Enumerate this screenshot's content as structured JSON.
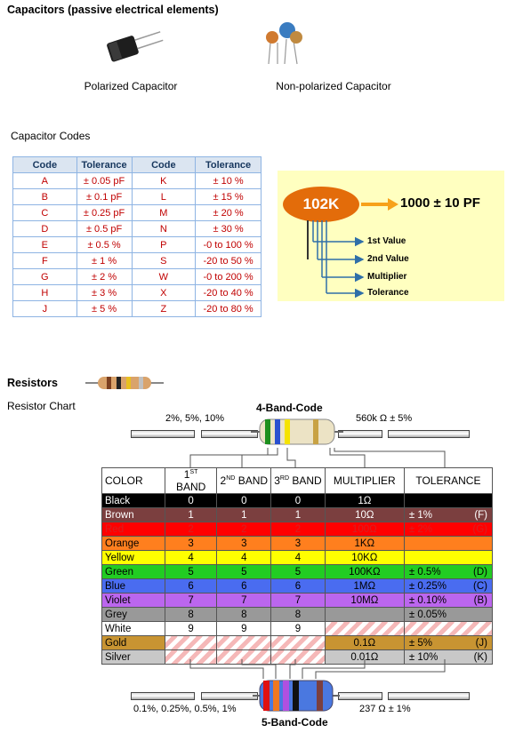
{
  "capacitors": {
    "title": "Capacitors (passive electrical elements)",
    "polarized_label": "Polarized Capacitor",
    "nonpolarized_label": "Non-polarized Capacitor",
    "codes_title": "Capacitor Codes"
  },
  "cap_table": {
    "headers": [
      "Code",
      "Tolerance",
      "Code",
      "Tolerance"
    ],
    "rows": [
      [
        "A",
        "± 0.05 pF",
        "K",
        "± 10 %"
      ],
      [
        "B",
        "± 0.1 pF",
        "L",
        "± 15 %"
      ],
      [
        "C",
        "± 0.25 pF",
        "M",
        "± 20 %"
      ],
      [
        "D",
        "± 0.5 pF",
        "N",
        "± 30 %"
      ],
      [
        "E",
        "± 0.5 %",
        "P",
        "-0 to 100 %"
      ],
      [
        "F",
        "± 1 %",
        "S",
        "-20 to 50 %"
      ],
      [
        "G",
        "± 2 %",
        "W",
        "-0 to 200 %"
      ],
      [
        "H",
        "± 3 %",
        "X",
        "-20 to 40 %"
      ],
      [
        "J",
        "± 5 %",
        "Z",
        "-20 to 80 %"
      ]
    ]
  },
  "cap_diagram": {
    "code": "102K",
    "result": "1000 ± 10 PF",
    "labels": [
      "1st Value",
      "2nd Value",
      "Multiplier",
      "Tolerance"
    ]
  },
  "resistors": {
    "title": "Resistors",
    "chart_title": "Resistor Chart",
    "four_band_title": "4-Band-Code",
    "four_band_left": "2%, 5%, 10%",
    "four_band_right": "560k Ω  ± 5%",
    "five_band_title": "5-Band-Code",
    "five_band_left": "0.1%, 0.25%, 0.5%, 1%",
    "five_band_right": "237 Ω  ± 1%"
  },
  "res_table": {
    "headers": [
      "COLOR",
      "1ST BAND",
      "2ND BAND",
      "3RD BAND",
      "MULTIPLIER",
      "TOLERANCE"
    ],
    "header_sups": [
      "",
      "ST",
      "ND",
      "RD",
      "",
      ""
    ],
    "header_bases": [
      "COLOR",
      "1",
      "2",
      "3",
      "MULTIPLIER",
      "TOLERANCE"
    ],
    "header_rests": [
      "",
      " BAND",
      " BAND",
      " BAND",
      "",
      ""
    ],
    "rows": [
      {
        "color": "Black",
        "bg": "#000000",
        "fg": "#ffffff",
        "b1": "0",
        "b2": "0",
        "b3": "0",
        "mult": "1Ω",
        "tol": "",
        "tcode": ""
      },
      {
        "color": "Brown",
        "bg": "#7b3f3f",
        "fg": "#ffffff",
        "b1": "1",
        "b2": "1",
        "b3": "1",
        "mult": "10Ω",
        "tol": "± 1%",
        "tcode": "(F)"
      },
      {
        "color": "Red",
        "bg": "#ff0000",
        "fg": "#d82020",
        "b1": "2",
        "b2": "2",
        "b3": "2",
        "mult": "100Ω",
        "tol": "± 2%",
        "tcode": "(G)"
      },
      {
        "color": "Orange",
        "bg": "#ff7f1e",
        "fg": "#000000",
        "b1": "3",
        "b2": "3",
        "b3": "3",
        "mult": "1KΩ",
        "tol": "",
        "tcode": ""
      },
      {
        "color": "Yellow",
        "bg": "#ffff00",
        "fg": "#000000",
        "b1": "4",
        "b2": "4",
        "b3": "4",
        "mult": "10KΩ",
        "tol": "",
        "tcode": ""
      },
      {
        "color": "Green",
        "bg": "#22cc22",
        "fg": "#000000",
        "b1": "5",
        "b2": "5",
        "b3": "5",
        "mult": "100KΩ",
        "tol": "± 0.5%",
        "tcode": "(D)"
      },
      {
        "color": "Blue",
        "bg": "#4a6cf0",
        "fg": "#000000",
        "b1": "6",
        "b2": "6",
        "b3": "6",
        "mult": "1MΩ",
        "tol": "± 0.25%",
        "tcode": "(C)"
      },
      {
        "color": "Violet",
        "bg": "#bb66ee",
        "fg": "#000000",
        "b1": "7",
        "b2": "7",
        "b3": "7",
        "mult": "10MΩ",
        "tol": "± 0.10%",
        "tcode": "(B)"
      },
      {
        "color": "Grey",
        "bg": "#999999",
        "fg": "#000000",
        "b1": "8",
        "b2": "8",
        "b3": "8",
        "mult": "",
        "tol": "± 0.05%",
        "tcode": ""
      },
      {
        "color": "White",
        "bg": "#ffffff",
        "fg": "#000000",
        "b1": "9",
        "b2": "9",
        "b3": "9",
        "mult": "",
        "tol": "",
        "tcode": ""
      },
      {
        "color": "Gold",
        "bg": "#c89432",
        "fg": "#000000",
        "b1": "",
        "b2": "",
        "b3": "",
        "mult": "0.1Ω",
        "tol": "± 5%",
        "tcode": "(J)"
      },
      {
        "color": "Silver",
        "bg": "#c8c8c8",
        "fg": "#000000",
        "b1": "",
        "b2": "",
        "b3": "",
        "mult": "0.01Ω",
        "tol": "± 10%",
        "tcode": "(K)"
      }
    ]
  }
}
